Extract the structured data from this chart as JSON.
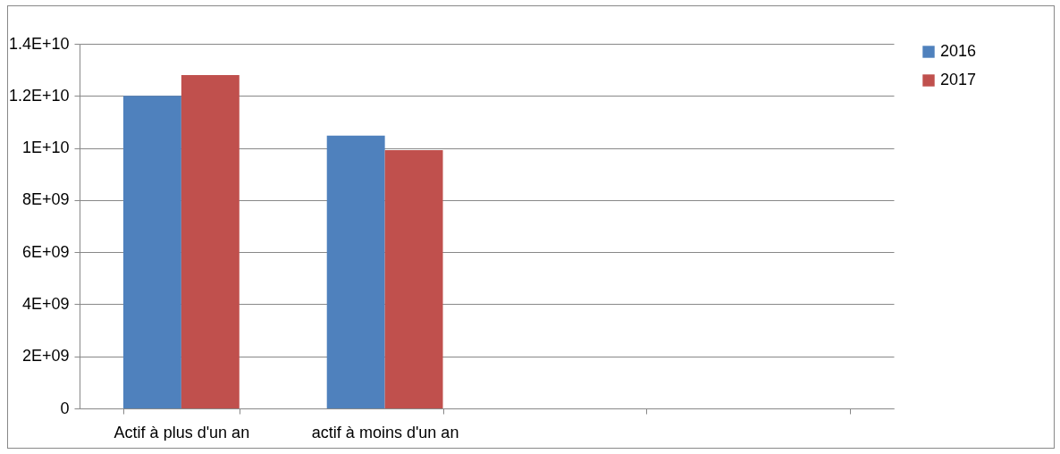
{
  "chart_data": {
    "type": "bar",
    "categories": [
      "Actif à plus d'un an",
      "actif à moins d'un an",
      null,
      null
    ],
    "series": [
      {
        "name": "2016",
        "color": "#4f81bd",
        "values": [
          12000000000,
          10470000000,
          null,
          null
        ]
      },
      {
        "name": "2017",
        "color": "#c0504d",
        "values": [
          12800000000,
          9920000000,
          null,
          null
        ]
      }
    ],
    "ylim": [
      0,
      14000000000
    ],
    "yticks": [
      0,
      {
        "value": 2000000000,
        "label": "2E+09"
      },
      {
        "value": 4000000000,
        "label": "4E+09"
      },
      {
        "value": 6000000000,
        "label": "6E+09"
      },
      {
        "value": 8000000000,
        "label": "8E+09"
      },
      {
        "value": 10000000000,
        "label": "1E+10"
      },
      {
        "value": 12000000000,
        "label": "1.2E+10"
      },
      {
        "value": 14000000000,
        "label": "1.4E+10"
      }
    ],
    "grid": "y",
    "legend": "right"
  }
}
